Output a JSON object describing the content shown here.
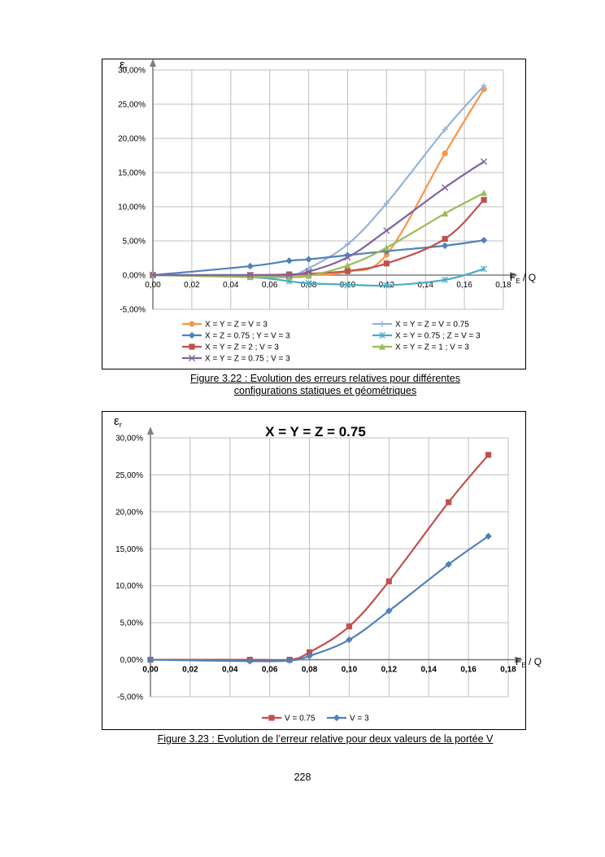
{
  "chart_data": [
    {
      "type": "line",
      "title": "",
      "ylabel": "εr",
      "ylabel_main": "ε",
      "ylabel_sub": "r",
      "xlabel": "FE / Q",
      "xlabel_main": "F",
      "xlabel_sub": "E",
      "xlabel_rest": " / Q",
      "xlim": [
        0,
        0.18
      ],
      "ylim": [
        -0.05,
        0.3
      ],
      "x_ticks": [
        0,
        0.02,
        0.04,
        0.06,
        0.08,
        0.1,
        0.12,
        0.14,
        0.16,
        0.18
      ],
      "x_tick_labels": [
        "0,00",
        "0,02",
        "0,04",
        "0,06",
        "0,08",
        "0,10",
        "0,12",
        "0,14",
        "0,16",
        "0,18"
      ],
      "y_ticks": [
        -0.05,
        0,
        0.05,
        0.1,
        0.15,
        0.2,
        0.25,
        0.3
      ],
      "y_tick_labels": [
        "-5,00%",
        "0,00%",
        "5,00%",
        "10,00%",
        "15,00%",
        "20,00%",
        "25,00%",
        "30,00%"
      ],
      "grid": true,
      "legend": "bottom",
      "series": [
        {
          "name": "X = Y = Z = V = 3",
          "color": "#f79646",
          "marker": "circle",
          "x": [
            0,
            0.05,
            0.07,
            0.08,
            0.1,
            0.12,
            0.15,
            0.17
          ],
          "y": [
            0,
            0,
            0,
            0,
            0.005,
            0.03,
            0.178,
            0.272
          ]
        },
        {
          "name": "X = Y = Z = V = 0.75",
          "color": "#95b3d7",
          "marker": "plus",
          "x": [
            0,
            0.05,
            0.07,
            0.08,
            0.1,
            0.12,
            0.15,
            0.17
          ],
          "y": [
            0,
            0,
            0,
            0.01,
            0.045,
            0.105,
            0.213,
            0.277
          ]
        },
        {
          "name": "X = Z = 0.75 ; Y = V = 3",
          "color": "#4f81bd",
          "marker": "diamond",
          "x": [
            0,
            0.05,
            0.07,
            0.08,
            0.1,
            0.12,
            0.15,
            0.17
          ],
          "y": [
            0,
            0.013,
            0.021,
            0.023,
            0.029,
            0.035,
            0.043,
            0.051
          ]
        },
        {
          "name": "X = Y = 0.75 ; Z = V = 3",
          "color": "#4bacc6",
          "marker": "asterisk",
          "x": [
            0,
            0.05,
            0.07,
            0.08,
            0.1,
            0.12,
            0.15,
            0.17
          ],
          "y": [
            0,
            -0.003,
            -0.009,
            -0.012,
            -0.014,
            -0.015,
            -0.007,
            0.009
          ]
        },
        {
          "name": "X = Y = Z = 2 ; V = 3",
          "color": "#c0504d",
          "marker": "square",
          "x": [
            0,
            0.05,
            0.07,
            0.08,
            0.1,
            0.12,
            0.15,
            0.17
          ],
          "y": [
            0,
            0,
            0.001,
            0.002,
            0.006,
            0.017,
            0.053,
            0.11
          ]
        },
        {
          "name": "X = Y = Z = 1 ; V = 3",
          "color": "#9bbb59",
          "marker": "triangle",
          "x": [
            0,
            0.05,
            0.07,
            0.08,
            0.1,
            0.12,
            0.15,
            0.17
          ],
          "y": [
            0,
            -0.003,
            -0.003,
            -0.001,
            0.014,
            0.04,
            0.09,
            0.12
          ]
        },
        {
          "name": "X = Y = Z = 0.75 ; V = 3",
          "color": "#8064a2",
          "marker": "x",
          "x": [
            0,
            0.05,
            0.07,
            0.08,
            0.1,
            0.12,
            0.15,
            0.17
          ],
          "y": [
            0,
            0,
            0,
            0.005,
            0.026,
            0.065,
            0.128,
            0.166
          ]
        }
      ]
    },
    {
      "type": "line",
      "title": "X = Y = Z = 0.75",
      "ylabel": "εr",
      "ylabel_main": "ε",
      "ylabel_sub": "r",
      "xlabel": "FE / Q",
      "xlabel_main": "F",
      "xlabel_sub": "E",
      "xlabel_rest": " / Q",
      "xlim": [
        0,
        0.18
      ],
      "ylim": [
        -0.05,
        0.3
      ],
      "x_ticks": [
        0,
        0.02,
        0.04,
        0.06,
        0.08,
        0.1,
        0.12,
        0.14,
        0.16,
        0.18
      ],
      "x_tick_labels": [
        "0,00",
        "0,02",
        "0,04",
        "0,06",
        "0,08",
        "0,10",
        "0,12",
        "0,14",
        "0,16",
        "0,18"
      ],
      "y_ticks": [
        -0.05,
        0,
        0.05,
        0.1,
        0.15,
        0.2,
        0.25,
        0.3
      ],
      "y_tick_labels": [
        "-5,00%",
        "0,00%",
        "5,00%",
        "10,00%",
        "15,00%",
        "20,00%",
        "25,00%",
        "30,00%"
      ],
      "grid": true,
      "legend": "bottom",
      "series": [
        {
          "name": "V = 0.75",
          "color": "#c0504d",
          "marker": "square",
          "x": [
            0,
            0.05,
            0.07,
            0.08,
            0.1,
            0.12,
            0.15,
            0.17
          ],
          "y": [
            0,
            0,
            0,
            0.01,
            0.045,
            0.106,
            0.213,
            0.277
          ]
        },
        {
          "name": "V = 3",
          "color": "#4f81bd",
          "marker": "diamond",
          "x": [
            0,
            0.05,
            0.07,
            0.08,
            0.1,
            0.12,
            0.15,
            0.17
          ],
          "y": [
            0,
            -0.002,
            -0.001,
            0.005,
            0.027,
            0.066,
            0.129,
            0.167
          ]
        }
      ]
    }
  ],
  "captions": {
    "fig322_line1": "Figure 3.22 : Evolution des erreurs relatives pour différentes",
    "fig322_line2": "configurations statiques et géométriques",
    "fig323": "Figure 3.23 : Evolution de l’erreur relative pour deux valeurs de la portée V"
  },
  "page_number": "228"
}
